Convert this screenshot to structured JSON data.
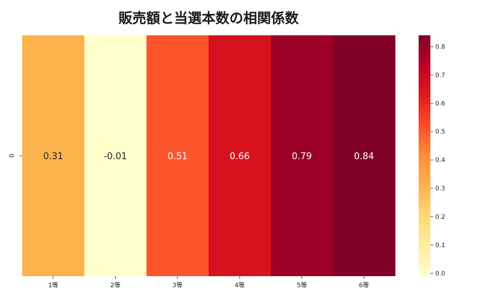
{
  "chart_data": {
    "type": "heatmap",
    "title": "販売額と当選本数の相関係数",
    "rows": [
      "0"
    ],
    "categories": [
      "1等",
      "2等",
      "3等",
      "4等",
      "5等",
      "6等"
    ],
    "values": [
      0.31,
      -0.01,
      0.51,
      0.66,
      0.79,
      0.84
    ],
    "value_labels": [
      "0.31",
      "-0.01",
      "0.51",
      "0.66",
      "0.79",
      "0.84"
    ],
    "colorbar": {
      "colormap": "YlOrRd",
      "range": [
        -0.01,
        0.84
      ],
      "ticks": [
        "0.0",
        "0.1",
        "0.2",
        "0.3",
        "0.4",
        "0.5",
        "0.6",
        "0.7",
        "0.8"
      ]
    }
  }
}
